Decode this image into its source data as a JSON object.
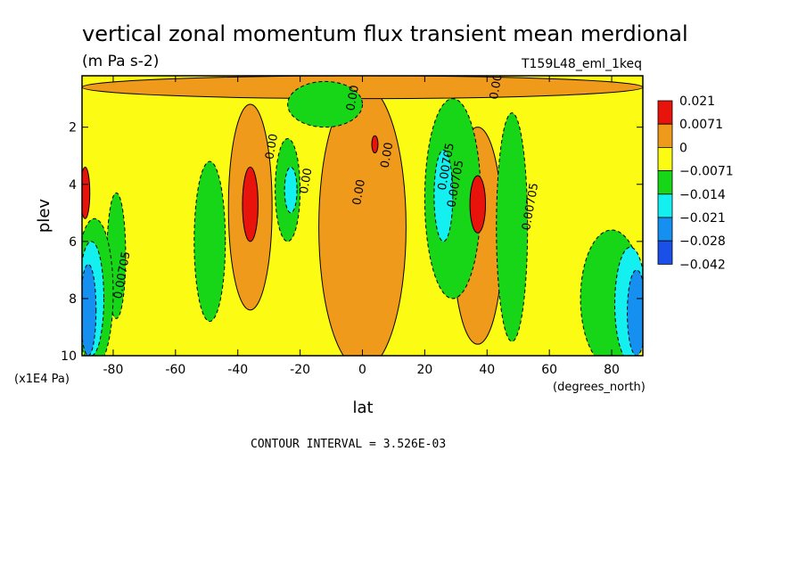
{
  "chart_data": {
    "type": "heatmap",
    "title": "vertical zonal momentum flux transient mean merdional",
    "units": "(m Pa s-2)",
    "experiment": "T159L48_eml_1keq",
    "xlabel": "lat",
    "x_units": "(degrees_north)",
    "ylabel": "plev",
    "y_units": "(x1E4 Pa)",
    "xlim": [
      -90,
      90
    ],
    "ylim": [
      10,
      0.2
    ],
    "x_ticks": [
      "-80",
      "-60",
      "-40",
      "-20",
      "0",
      "20",
      "40",
      "60",
      "80"
    ],
    "y_ticks": [
      "2",
      "4",
      "6",
      "8",
      "10"
    ],
    "colorbar": {
      "labels": [
        "0.021",
        "0.0071",
        "0",
        "−0.0071",
        "−0.014",
        "−0.021",
        "−0.028",
        "−0.042"
      ],
      "colors": [
        "#e8140c",
        "#f09a1c",
        "#fbfb14",
        "#17d517",
        "#14f0f0",
        "#1690f0",
        "#1a50e8"
      ]
    },
    "contour_labels": [
      "0.00",
      "0.00",
      "0.00",
      "0.00",
      "0.00",
      "0.00",
      "0.00705",
      "0.00705",
      "0.00705",
      "0.00705"
    ],
    "contour_interval_text": "CONTOUR INTERVAL = 3.526E-03",
    "regions": [
      {
        "level": 0,
        "lat_center": 0,
        "plev_center": 5.5,
        "lat_half_width": 14,
        "plev_half_height": 5
      },
      {
        "level": 0,
        "lat_center": -36,
        "plev_center": 4.8,
        "lat_half_width": 7,
        "plev_half_height": 3.6
      },
      {
        "level": 0,
        "lat_center": 37,
        "plev_center": 5.8,
        "lat_half_width": 8,
        "plev_half_height": 3.8
      },
      {
        "level": 0,
        "lat_center": 0,
        "plev_center": 0.6,
        "lat_half_width": 90,
        "plev_half_height": 0.4
      },
      {
        "level": -1,
        "lat_center": -49,
        "plev_center": 6,
        "lat_half_width": 5,
        "plev_half_height": 2.8
      },
      {
        "level": -1,
        "lat_center": -24,
        "plev_center": 4.2,
        "lat_half_width": 4,
        "plev_half_height": 1.8
      },
      {
        "level": -1,
        "lat_center": -79,
        "plev_center": 6.5,
        "lat_half_width": 3,
        "plev_half_height": 2.2
      },
      {
        "level": -1,
        "lat_center": 29,
        "plev_center": 4.5,
        "lat_half_width": 9,
        "plev_half_height": 3.5
      },
      {
        "level": -1,
        "lat_center": 48,
        "plev_center": 5.5,
        "lat_half_width": 5,
        "plev_half_height": 4
      },
      {
        "level": -1,
        "lat_center": -12,
        "plev_center": 1.2,
        "lat_half_width": 12,
        "plev_half_height": 0.8
      },
      {
        "level": -1,
        "lat_center": 80,
        "plev_center": 8,
        "lat_half_width": 10,
        "plev_half_height": 2.4
      },
      {
        "level": -1,
        "lat_center": -86,
        "plev_center": 7.8,
        "lat_half_width": 6,
        "plev_half_height": 2.6
      },
      {
        "level": -2,
        "lat_center": 26,
        "plev_center": 4.4,
        "lat_half_width": 3,
        "plev_half_height": 1.6
      },
      {
        "level": -2,
        "lat_center": -23,
        "plev_center": 4.2,
        "lat_half_width": 2,
        "plev_half_height": 0.8
      },
      {
        "level": -2,
        "lat_center": 86,
        "plev_center": 8.2,
        "lat_half_width": 5,
        "plev_half_height": 2
      },
      {
        "level": -2,
        "lat_center": -87,
        "plev_center": 8,
        "lat_half_width": 4,
        "plev_half_height": 2
      },
      {
        "level": -3,
        "lat_center": 88,
        "plev_center": 8.5,
        "lat_half_width": 3,
        "plev_half_height": 1.5
      },
      {
        "level": -3,
        "lat_center": -88,
        "plev_center": 8.4,
        "lat_half_width": 2.5,
        "plev_half_height": 1.6
      },
      {
        "level": 1,
        "lat_center": -36,
        "plev_center": 4.7,
        "lat_half_width": 2.5,
        "plev_half_height": 1.3
      },
      {
        "level": 1,
        "lat_center": 37,
        "plev_center": 4.7,
        "lat_half_width": 2.5,
        "plev_half_height": 1
      },
      {
        "level": 1,
        "lat_center": -89,
        "plev_center": 4.3,
        "lat_half_width": 1.5,
        "plev_half_height": 0.9
      },
      {
        "level": 1,
        "lat_center": 4,
        "plev_center": 2.6,
        "lat_half_width": 1,
        "plev_half_height": 0.3
      }
    ]
  }
}
